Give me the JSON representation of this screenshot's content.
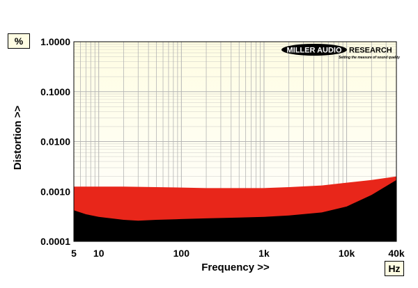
{
  "chart_data": {
    "type": "area",
    "title": "",
    "xlabel": "Frequency >>",
    "ylabel": "Distortion >>",
    "x_unit": "Hz",
    "y_unit": "%",
    "x_scale": "log",
    "y_scale": "log",
    "xlim": [
      5,
      40000
    ],
    "ylim": [
      0.0001,
      1.0
    ],
    "x_ticks": [
      {
        "value": 5,
        "label": "5"
      },
      {
        "value": 10,
        "label": "10"
      },
      {
        "value": 100,
        "label": "100"
      },
      {
        "value": 1000,
        "label": "1k"
      },
      {
        "value": 10000,
        "label": "10k"
      },
      {
        "value": 40000,
        "label": "40k"
      }
    ],
    "y_ticks": [
      {
        "value": 0.0001,
        "label": "0.0001"
      },
      {
        "value": 0.001,
        "label": "0.0010"
      },
      {
        "value": 0.01,
        "label": "0.0100"
      },
      {
        "value": 0.1,
        "label": "0.1000"
      },
      {
        "value": 1.0,
        "label": "1.0000"
      }
    ],
    "grid": true,
    "series": [
      {
        "color": "#e8261a",
        "x": [
          5,
          10,
          20,
          50,
          100,
          200,
          500,
          1000,
          2000,
          5000,
          10000,
          20000,
          40000
        ],
        "values": [
          0.00125,
          0.00125,
          0.00125,
          0.00122,
          0.0012,
          0.00117,
          0.00117,
          0.00117,
          0.00122,
          0.00132,
          0.0015,
          0.0017,
          0.002
        ]
      },
      {
        "color": "#000000",
        "x": [
          5,
          7,
          10,
          20,
          30,
          50,
          100,
          200,
          500,
          1000,
          2000,
          5000,
          10000,
          20000,
          40000
        ],
        "values": [
          0.00042,
          0.00035,
          0.00031,
          0.00027,
          0.00026,
          0.00027,
          0.00028,
          0.00029,
          0.0003,
          0.00031,
          0.00033,
          0.00038,
          0.0005,
          0.00085,
          0.0017
        ]
      }
    ]
  },
  "branding": {
    "logo_main": "MILLER AUDIO",
    "logo_research": "RESEARCH",
    "tagline": "Setting the measure of sound quality"
  },
  "colors": {
    "plot_background_top": "#fffde3",
    "plot_background_bottom": "#ffffff",
    "grid": "#b4b4b4",
    "red_band": "#e8261a",
    "noise_floor": "#000000"
  }
}
